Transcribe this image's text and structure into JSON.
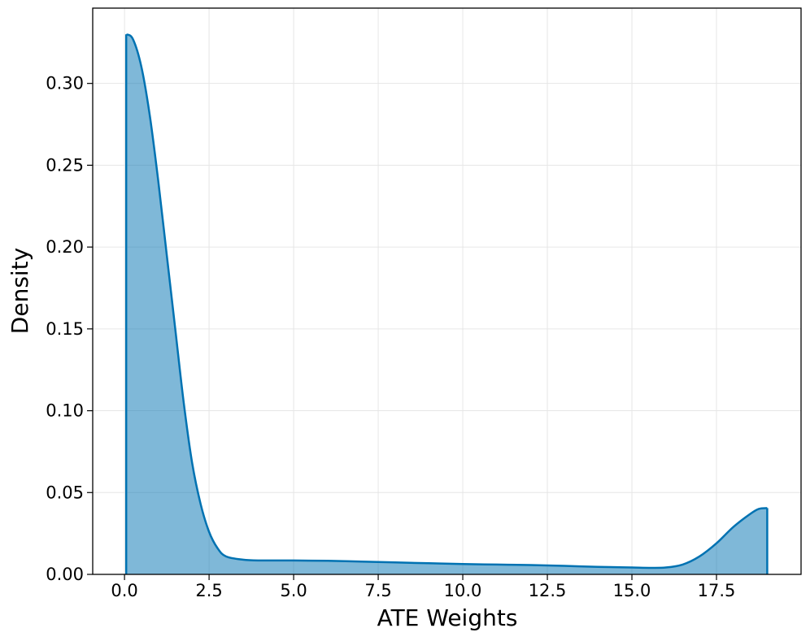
{
  "chart_data": {
    "type": "area",
    "x_label": "ATE Weights",
    "y_label": "Density",
    "x": [
      0.05,
      0.25,
      0.5,
      0.75,
      1.0,
      1.25,
      1.5,
      1.75,
      2.0,
      2.25,
      2.5,
      2.75,
      3.0,
      3.5,
      4.0,
      5.0,
      6.0,
      7.0,
      8.0,
      9.0,
      10.0,
      11.0,
      12.0,
      13.0,
      14.0,
      15.0,
      15.5,
      16.0,
      16.5,
      17.0,
      17.5,
      18.0,
      18.5,
      18.75,
      19.0
    ],
    "series": [
      {
        "name": "Density",
        "color": "#0072b2",
        "values": [
          0.33,
          0.327,
          0.31,
          0.28,
          0.24,
          0.195,
          0.15,
          0.105,
          0.068,
          0.043,
          0.026,
          0.016,
          0.011,
          0.009,
          0.0085,
          0.0085,
          0.0083,
          0.0078,
          0.0073,
          0.0068,
          0.0063,
          0.006,
          0.0057,
          0.0052,
          0.0046,
          0.0042,
          0.004,
          0.0042,
          0.006,
          0.011,
          0.019,
          0.029,
          0.037,
          0.04,
          0.0405
        ]
      }
    ],
    "xlim": [
      -0.94,
      20.0
    ],
    "ylim": [
      0,
      0.346
    ],
    "xticks": [
      {
        "value": 0,
        "label": "0.0"
      },
      2.5,
      {
        "value": 5,
        "label": "5.0"
      },
      7.5,
      {
        "value": 10,
        "label": "10.0"
      },
      12.5,
      {
        "value": 15,
        "label": "15.0"
      },
      17.5
    ],
    "yticks": [
      {
        "value": 0,
        "label": "0.00"
      },
      {
        "value": 0.05,
        "label": "0.05"
      },
      {
        "value": 0.1,
        "label": "0.10"
      },
      {
        "value": 0.15,
        "label": "0.15"
      },
      {
        "value": 0.2,
        "label": "0.20"
      },
      {
        "value": 0.25,
        "label": "0.25"
      },
      {
        "value": 0.3,
        "label": "0.30"
      }
    ],
    "grid": true
  }
}
